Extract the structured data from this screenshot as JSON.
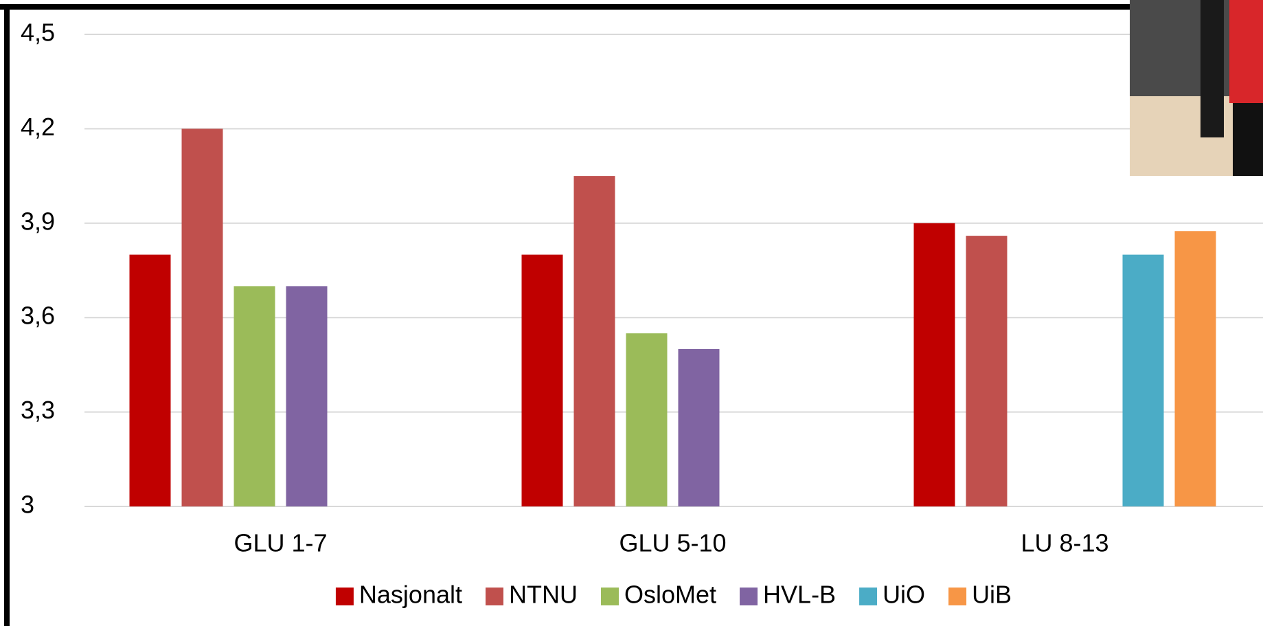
{
  "chart_data": {
    "type": "bar",
    "categories": [
      "GLU 1-7",
      "GLU 5-10",
      "LU 8-13"
    ],
    "series": [
      {
        "name": "Nasjonalt",
        "color": "#c00000",
        "values": [
          3.8,
          3.8,
          3.9
        ]
      },
      {
        "name": "NTNU",
        "color": "#c0504d",
        "values": [
          4.2,
          4.05,
          3.86
        ]
      },
      {
        "name": "OsloMet",
        "color": "#9bbb59",
        "values": [
          3.7,
          3.55,
          null
        ]
      },
      {
        "name": "HVL-B",
        "color": "#8064a2",
        "values": [
          3.7,
          3.5,
          null
        ]
      },
      {
        "name": "UiO",
        "color": "#4bacc6",
        "values": [
          null,
          null,
          3.8
        ]
      },
      {
        "name": "UiB",
        "color": "#f79646",
        "values": [
          null,
          null,
          3.875
        ]
      }
    ],
    "ylim": [
      3,
      4.5
    ],
    "yticks": [
      3,
      {
        "value": 3.3,
        "label": "3,3"
      },
      {
        "value": 3.6,
        "label": "3,6"
      },
      {
        "value": 3.9,
        "label": "3,9"
      },
      {
        "value": 4.2,
        "label": "4,2"
      },
      {
        "value": 4.5,
        "label": "4,5"
      }
    ],
    "grid": true,
    "legend": "bottom"
  }
}
